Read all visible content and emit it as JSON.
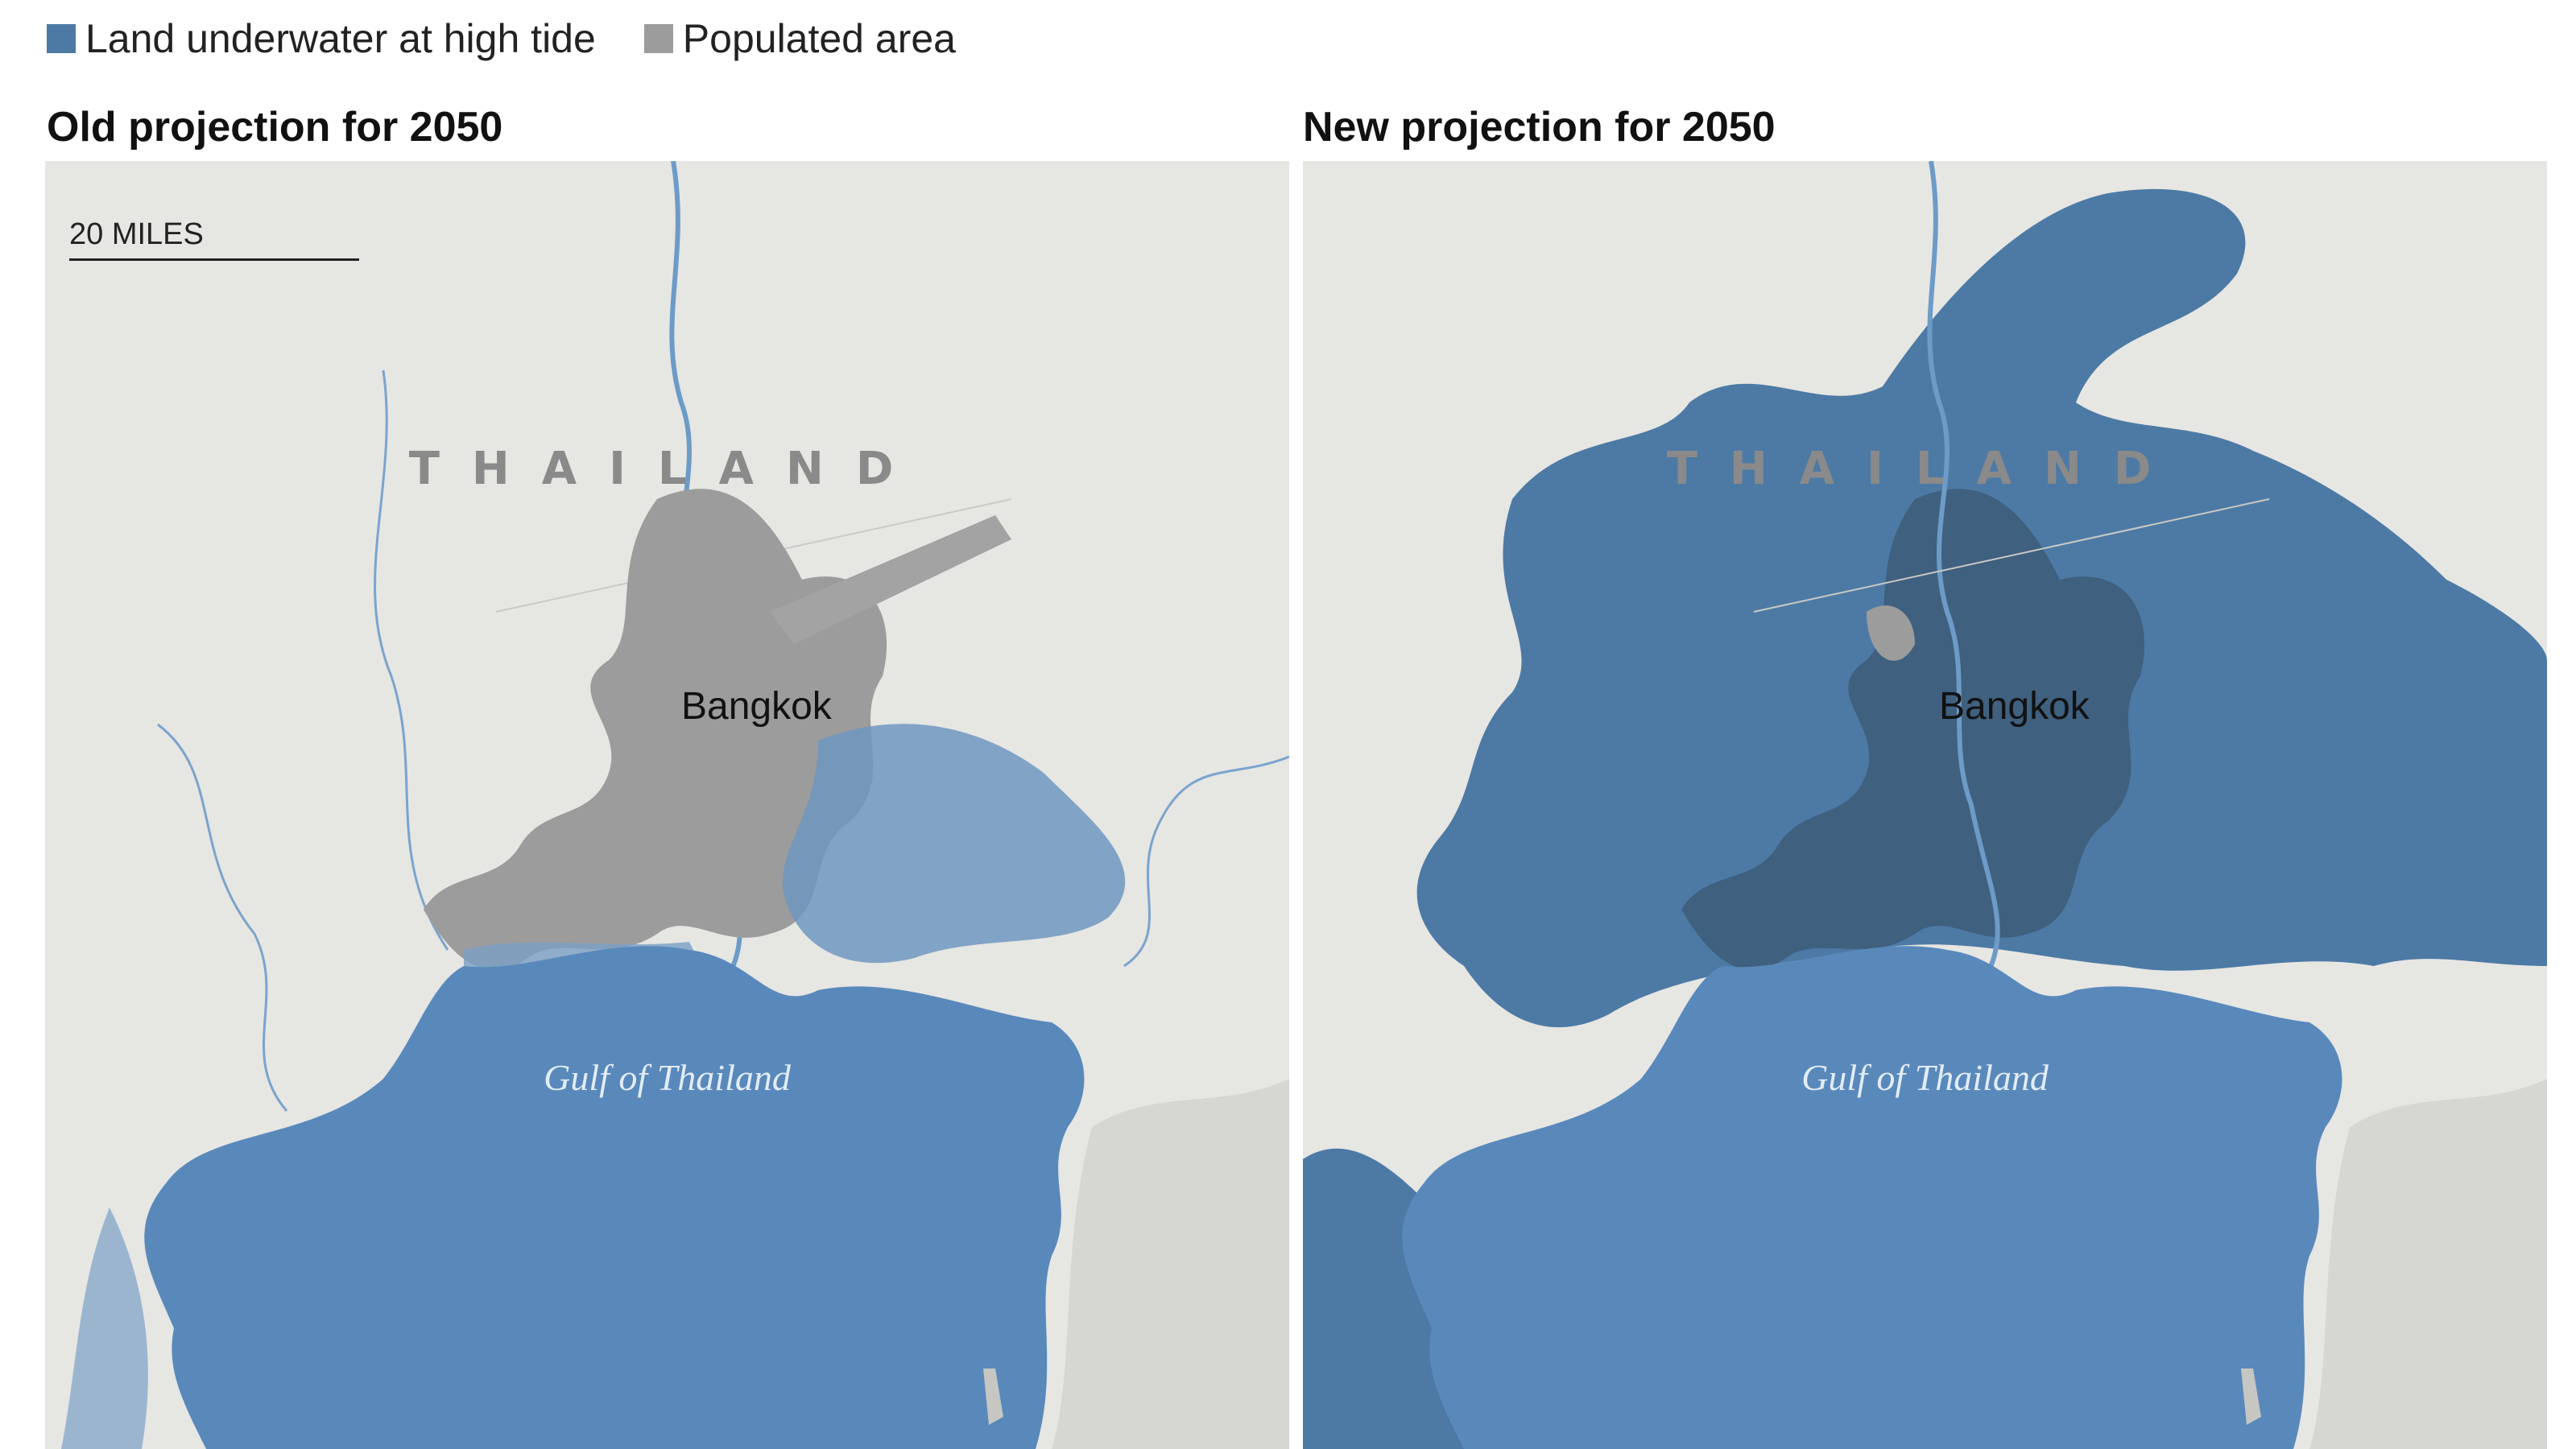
{
  "legend": {
    "items": [
      {
        "label": "Land underwater at high tide",
        "color": "#4d7aa5"
      },
      {
        "label": "Populated area",
        "color": "#9c9c9c"
      }
    ]
  },
  "panels": [
    {
      "title": "Old projection for 2050"
    },
    {
      "title": "New projection for 2050"
    }
  ],
  "map": {
    "scale_label": "20 MILES",
    "country_label": "THAILAND",
    "city_label": "Bangkok",
    "water_label": "Gulf of Thailand"
  },
  "colors": {
    "land": "#e6e6e3",
    "sea": "#5989bb",
    "flood": "#4d7aa5",
    "populated": "#9c9c9c",
    "populated_flooded": "#3f607f",
    "relief": "#d2d2d0"
  }
}
